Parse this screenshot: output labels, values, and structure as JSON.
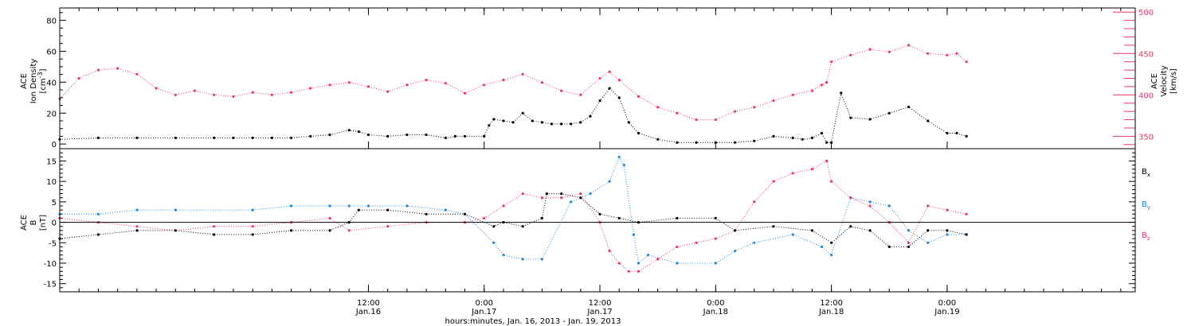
{
  "colors": {
    "density": "#000000",
    "velocity": "#ee3560",
    "bx": "#000000",
    "by": "#1f86e0",
    "bz": "#ee3560",
    "frame": "#000000"
  },
  "chart_data": [
    {
      "type": "scatter",
      "x_range": [
        "2013-01-15T04:00",
        "2013-01-19T19:30"
      ],
      "y_left": {
        "label_lines": [
          "ACE",
          "Ion Density"
        ],
        "unit_prefix": "[cm",
        "unit_sup": "-3",
        "unit_suffix": "]",
        "range": [
          -3,
          88
        ],
        "ticks": [
          0,
          20,
          40,
          60,
          80
        ]
      },
      "y_right": {
        "label_lines": [
          "ACE",
          "Velocity"
        ],
        "unit": "[km/s]",
        "range": [
          335,
          505
        ],
        "ticks": [
          350,
          400,
          450,
          500
        ]
      },
      "series": [
        {
          "name": "Ion Density",
          "axis": "left",
          "x": [
            "2013-01-15T04:00",
            "2013-01-15T08:00",
            "2013-01-15T12:00",
            "2013-01-15T16:00",
            "2013-01-15T20:00",
            "2013-01-15T22:00",
            "2013-01-16T00:00",
            "2013-01-16T02:00",
            "2013-01-16T04:00",
            "2013-01-16T06:00",
            "2013-01-16T08:00",
            "2013-01-16T10:00",
            "2013-01-16T11:00",
            "2013-01-16T12:00",
            "2013-01-16T14:00",
            "2013-01-16T16:00",
            "2013-01-16T18:00",
            "2013-01-16T20:00",
            "2013-01-16T21:00",
            "2013-01-16T22:00",
            "2013-01-17T00:00",
            "2013-01-17T00:30",
            "2013-01-17T01:00",
            "2013-01-17T02:00",
            "2013-01-17T03:00",
            "2013-01-17T04:00",
            "2013-01-17T05:00",
            "2013-01-17T06:00",
            "2013-01-17T07:00",
            "2013-01-17T08:00",
            "2013-01-17T09:00",
            "2013-01-17T10:00",
            "2013-01-17T11:00",
            "2013-01-17T12:00",
            "2013-01-17T13:00",
            "2013-01-17T14:00",
            "2013-01-17T15:00",
            "2013-01-17T16:00",
            "2013-01-17T18:00",
            "2013-01-17T20:00",
            "2013-01-17T22:00",
            "2013-01-18T00:00",
            "2013-01-18T02:00",
            "2013-01-18T04:00",
            "2013-01-18T06:00",
            "2013-01-18T08:00",
            "2013-01-18T09:00",
            "2013-01-18T10:00",
            "2013-01-18T11:00",
            "2013-01-18T11:30",
            "2013-01-18T12:00",
            "2013-01-18T13:00",
            "2013-01-18T14:00",
            "2013-01-18T16:00",
            "2013-01-18T18:00",
            "2013-01-18T20:00",
            "2013-01-18T22:00",
            "2013-01-19T00:00",
            "2013-01-19T01:00",
            "2013-01-19T02:00"
          ],
          "values": [
            3,
            4,
            4,
            4,
            4,
            4,
            4,
            4,
            4,
            5,
            6,
            9,
            8,
            6,
            5,
            6,
            6,
            4,
            5,
            5,
            5,
            12,
            16,
            15,
            14,
            20,
            15,
            14,
            13,
            13,
            13,
            14,
            18,
            28,
            36,
            30,
            14,
            7,
            3,
            1,
            1,
            1,
            1,
            2,
            5,
            4,
            3,
            4,
            7,
            1,
            1,
            33,
            17,
            16,
            20,
            24,
            15,
            7,
            7,
            5
          ]
        },
        {
          "name": "Velocity",
          "axis": "right",
          "x": [
            "2013-01-15T04:00",
            "2013-01-15T06:00",
            "2013-01-15T08:00",
            "2013-01-15T10:00",
            "2013-01-15T12:00",
            "2013-01-15T14:00",
            "2013-01-15T16:00",
            "2013-01-15T18:00",
            "2013-01-15T20:00",
            "2013-01-15T22:00",
            "2013-01-16T00:00",
            "2013-01-16T02:00",
            "2013-01-16T04:00",
            "2013-01-16T06:00",
            "2013-01-16T08:00",
            "2013-01-16T10:00",
            "2013-01-16T12:00",
            "2013-01-16T14:00",
            "2013-01-16T16:00",
            "2013-01-16T18:00",
            "2013-01-16T20:00",
            "2013-01-16T22:00",
            "2013-01-17T00:00",
            "2013-01-17T02:00",
            "2013-01-17T04:00",
            "2013-01-17T06:00",
            "2013-01-17T08:00",
            "2013-01-17T10:00",
            "2013-01-17T12:00",
            "2013-01-17T13:00",
            "2013-01-17T14:00",
            "2013-01-17T16:00",
            "2013-01-17T18:00",
            "2013-01-17T20:00",
            "2013-01-17T22:00",
            "2013-01-18T00:00",
            "2013-01-18T02:00",
            "2013-01-18T04:00",
            "2013-01-18T06:00",
            "2013-01-18T08:00",
            "2013-01-18T10:00",
            "2013-01-18T11:00",
            "2013-01-18T11:30",
            "2013-01-18T12:00",
            "2013-01-18T14:00",
            "2013-01-18T16:00",
            "2013-01-18T18:00",
            "2013-01-18T20:00",
            "2013-01-18T22:00",
            "2013-01-19T00:00",
            "2013-01-19T01:00",
            "2013-01-19T02:00"
          ],
          "values": [
            395,
            420,
            430,
            432,
            425,
            408,
            400,
            405,
            400,
            398,
            403,
            400,
            403,
            408,
            412,
            415,
            410,
            404,
            412,
            418,
            414,
            402,
            412,
            418,
            425,
            415,
            405,
            400,
            420,
            428,
            418,
            398,
            385,
            378,
            370,
            370,
            380,
            385,
            393,
            400,
            405,
            412,
            415,
            440,
            448,
            455,
            452,
            460,
            450,
            448,
            450,
            440
          ]
        }
      ]
    },
    {
      "type": "scatter",
      "x_range": [
        "2013-01-15T04:00",
        "2013-01-19T19:30"
      ],
      "x_ticks": [
        {
          "x": "2013-01-16T12:00",
          "time": "12:00",
          "date": "Jan.16"
        },
        {
          "x": "2013-01-17T00:00",
          "time": "0:00",
          "date": "Jan.17"
        },
        {
          "x": "2013-01-17T12:00",
          "time": "12:00",
          "date": "Jan.17"
        },
        {
          "x": "2013-01-18T00:00",
          "time": "0:00",
          "date": "Jan.18"
        },
        {
          "x": "2013-01-18T12:00",
          "time": "12:00",
          "date": "Jan.18"
        },
        {
          "x": "2013-01-19T00:00",
          "time": "0:00",
          "date": "Jan.19"
        }
      ],
      "xlabel": "hours:minutes, Jan. 16, 2013 - Jan. 19, 2013",
      "y": {
        "label_lines": [
          "ACE",
          "B"
        ],
        "unit": "[nT]",
        "range": [
          -17,
          18
        ],
        "ticks": [
          -15,
          -10,
          -5,
          0,
          5,
          10,
          15
        ]
      },
      "zero_line": 0,
      "series": [
        {
          "name": "Bx",
          "label_base": "B",
          "label_sub": "x",
          "x": [
            "2013-01-15T04:00",
            "2013-01-15T08:00",
            "2013-01-15T12:00",
            "2013-01-15T16:00",
            "2013-01-15T20:00",
            "2013-01-16T00:00",
            "2013-01-16T04:00",
            "2013-01-16T08:00",
            "2013-01-16T10:00",
            "2013-01-16T11:00",
            "2013-01-16T14:00",
            "2013-01-16T18:00",
            "2013-01-16T22:00",
            "2013-01-17T01:00",
            "2013-01-17T02:00",
            "2013-01-17T04:00",
            "2013-01-17T06:00",
            "2013-01-17T06:30",
            "2013-01-17T08:00",
            "2013-01-17T10:00",
            "2013-01-17T12:00",
            "2013-01-17T14:00",
            "2013-01-17T16:00",
            "2013-01-17T20:00",
            "2013-01-18T00:00",
            "2013-01-18T02:00",
            "2013-01-18T06:00",
            "2013-01-18T10:00",
            "2013-01-18T12:00",
            "2013-01-18T14:00",
            "2013-01-18T16:00",
            "2013-01-18T18:00",
            "2013-01-18T20:00",
            "2013-01-18T22:00",
            "2013-01-19T00:00",
            "2013-01-19T02:00"
          ],
          "values": [
            -4,
            -3,
            -2,
            -2,
            -3,
            -3,
            -2,
            -2,
            0,
            3,
            3,
            2,
            2,
            -1,
            0,
            -1,
            1,
            7,
            7,
            6,
            2,
            1,
            0,
            1,
            1,
            -2,
            -1,
            -2,
            -5,
            -1,
            -2,
            -6,
            -6,
            -2,
            -2,
            -3
          ]
        },
        {
          "name": "By",
          "label_base": "B",
          "label_sub": "y",
          "x": [
            "2013-01-15T04:00",
            "2013-01-15T08:00",
            "2013-01-15T12:00",
            "2013-01-15T16:00",
            "2013-01-16T00:00",
            "2013-01-16T04:00",
            "2013-01-16T08:00",
            "2013-01-16T10:00",
            "2013-01-16T12:00",
            "2013-01-16T16:00",
            "2013-01-16T20:00",
            "2013-01-16T22:00",
            "2013-01-17T01:00",
            "2013-01-17T02:00",
            "2013-01-17T04:00",
            "2013-01-17T06:00",
            "2013-01-17T09:00",
            "2013-01-17T11:00",
            "2013-01-17T13:00",
            "2013-01-17T14:00",
            "2013-01-17T14:30",
            "2013-01-17T15:30",
            "2013-01-17T16:00",
            "2013-01-17T17:00",
            "2013-01-17T20:00",
            "2013-01-18T00:00",
            "2013-01-18T02:00",
            "2013-01-18T04:00",
            "2013-01-18T08:00",
            "2013-01-18T11:00",
            "2013-01-18T12:00",
            "2013-01-18T14:00",
            "2013-01-18T16:00",
            "2013-01-18T18:00",
            "2013-01-18T20:00",
            "2013-01-18T22:00",
            "2013-01-19T00:00",
            "2013-01-19T02:00"
          ],
          "values": [
            2,
            2,
            3,
            3,
            3,
            4,
            4,
            4,
            4,
            4,
            3,
            2,
            -5,
            -8,
            -9,
            -9,
            5,
            7,
            10,
            16,
            14,
            -3,
            -10,
            -8,
            -10,
            -10,
            -7,
            -5,
            -3,
            -6,
            -8,
            6,
            5,
            4,
            -2,
            -5,
            -3,
            -3
          ]
        },
        {
          "name": "Bz",
          "label_base": "B",
          "label_sub": "z",
          "x": [
            "2013-01-15T04:00",
            "2013-01-15T08:00",
            "2013-01-15T12:00",
            "2013-01-15T16:00",
            "2013-01-15T20:00",
            "2013-01-16T00:00",
            "2013-01-16T04:00",
            "2013-01-16T08:00",
            "2013-01-16T10:00",
            "2013-01-16T14:00",
            "2013-01-16T18:00",
            "2013-01-16T22:00",
            "2013-01-17T00:00",
            "2013-01-17T02:00",
            "2013-01-17T04:00",
            "2013-01-17T06:00",
            "2013-01-17T08:00",
            "2013-01-17T10:00",
            "2013-01-17T12:00",
            "2013-01-17T13:00",
            "2013-01-17T14:00",
            "2013-01-17T15:00",
            "2013-01-17T16:00",
            "2013-01-17T18:00",
            "2013-01-17T20:00",
            "2013-01-17T22:00",
            "2013-01-18T00:00",
            "2013-01-18T02:00",
            "2013-01-18T04:00",
            "2013-01-18T06:00",
            "2013-01-18T08:00",
            "2013-01-18T10:00",
            "2013-01-18T11:30",
            "2013-01-18T12:00",
            "2013-01-18T14:00",
            "2013-01-18T16:00",
            "2013-01-18T18:00",
            "2013-01-18T20:00",
            "2013-01-18T22:00",
            "2013-01-19T00:00",
            "2013-01-19T02:00"
          ],
          "values": [
            1,
            0,
            -1,
            -2,
            -1,
            -1,
            0,
            1,
            -2,
            -1,
            0,
            0,
            1,
            4,
            7,
            6,
            6,
            7,
            0,
            -7,
            -10,
            -12,
            -12,
            -9,
            -6,
            -5,
            -4,
            -2,
            5,
            10,
            12,
            13,
            15,
            10,
            6,
            4,
            0,
            -5,
            4,
            3,
            2
          ]
        }
      ]
    }
  ]
}
